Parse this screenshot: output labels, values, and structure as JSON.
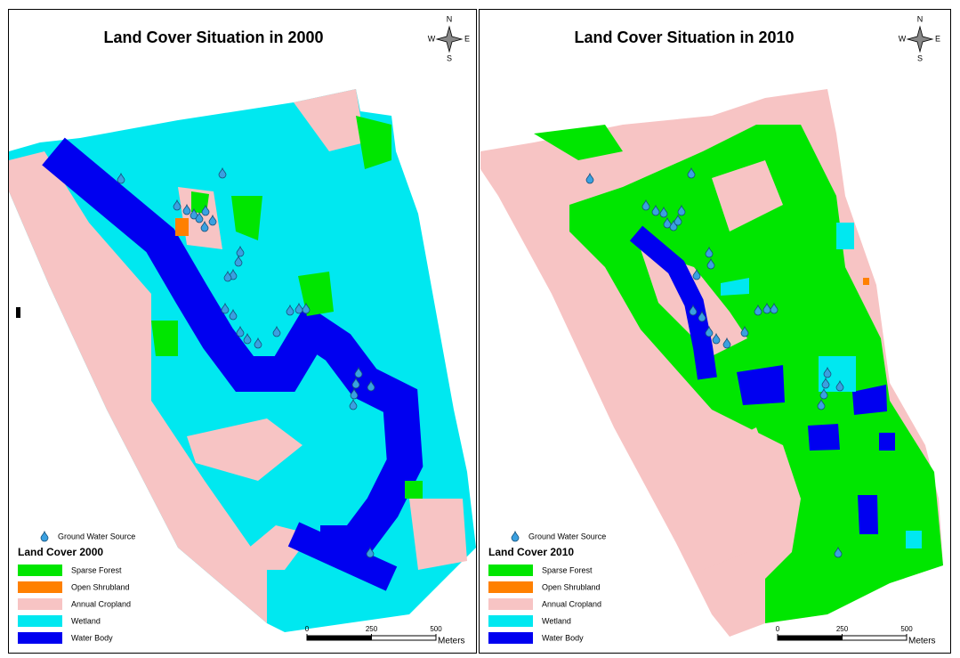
{
  "maps": [
    {
      "title": "Land Cover Situation in 2000",
      "compass": {
        "n": "N",
        "s": "S",
        "e": "E",
        "w": "W"
      },
      "legend": {
        "point": "Ground Water Source",
        "title": "Land Cover 2000",
        "classes": [
          {
            "name": "Sparse Forest",
            "color": "#00e600"
          },
          {
            "name": "Open Shrubland",
            "color": "#ff8000"
          },
          {
            "name": "Annual Cropland",
            "color": "#f7c4c4"
          },
          {
            "name": "Wetland",
            "color": "#00e8f0"
          },
          {
            "name": "Water Body",
            "color": "#0000f0"
          }
        ]
      },
      "scale": {
        "ticks": [
          0,
          250,
          500
        ],
        "unit": "Meters"
      }
    },
    {
      "title": "Land Cover Situation in 2010",
      "compass": {
        "n": "N",
        "s": "S",
        "e": "E",
        "w": "W"
      },
      "legend": {
        "point": "Ground Water Source",
        "title": "Land Cover 2010",
        "classes": [
          {
            "name": "Sparse Forest",
            "color": "#00e600"
          },
          {
            "name": "Open Shrubland",
            "color": "#ff8000"
          },
          {
            "name": "Annual Cropland",
            "color": "#f7c4c4"
          },
          {
            "name": "Wetland",
            "color": "#00e8f0"
          },
          {
            "name": "Water Body",
            "color": "#0000f0"
          }
        ]
      },
      "scale": {
        "ticks": [
          0,
          250,
          500
        ],
        "unit": "Meters"
      }
    }
  ]
}
